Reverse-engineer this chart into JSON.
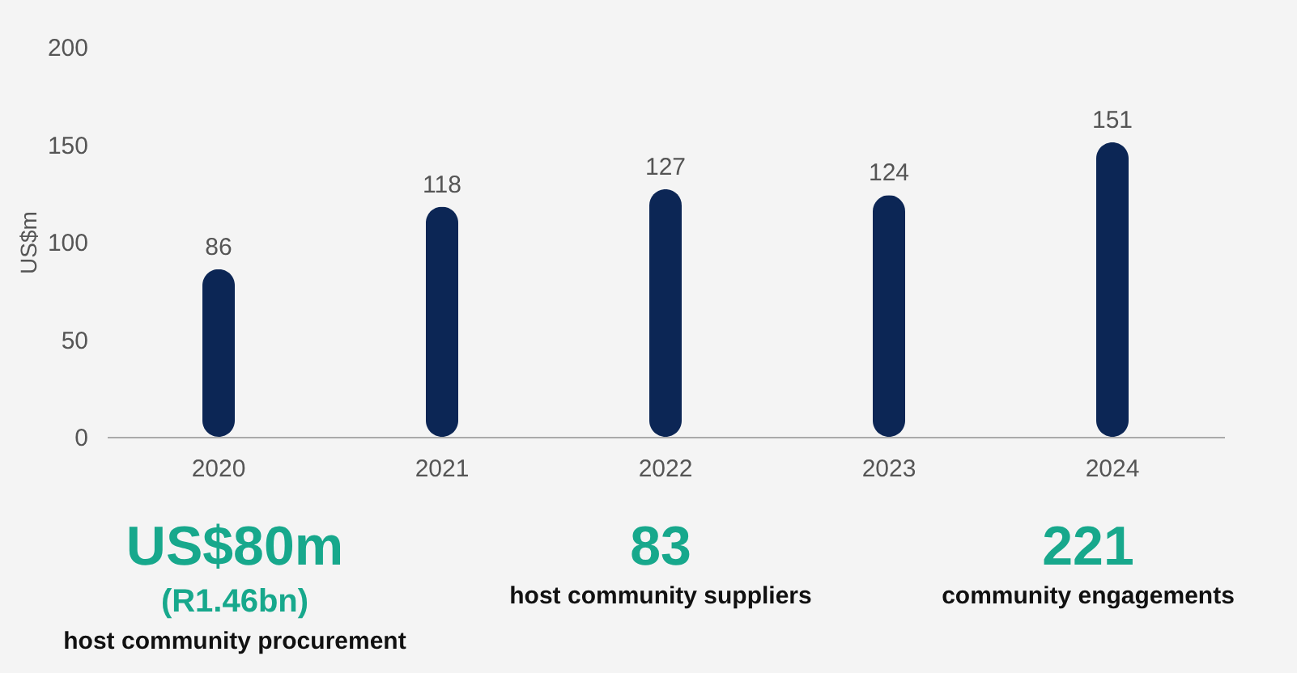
{
  "chart_data": {
    "type": "bar",
    "ylabel": "US$m",
    "categories": [
      "2020",
      "2021",
      "2022",
      "2023",
      "2024"
    ],
    "values": [
      86,
      118,
      127,
      124,
      151
    ],
    "color": "#0c2655",
    "ylim": [
      0,
      200
    ],
    "yticks": [
      0,
      50,
      100,
      150,
      200
    ],
    "grid": false,
    "data_labels": true,
    "annotations": [
      "US$80m",
      "(R1.46bn)",
      "host community procurement",
      "83",
      "host community suppliers",
      "221",
      "community engagements"
    ]
  }
}
